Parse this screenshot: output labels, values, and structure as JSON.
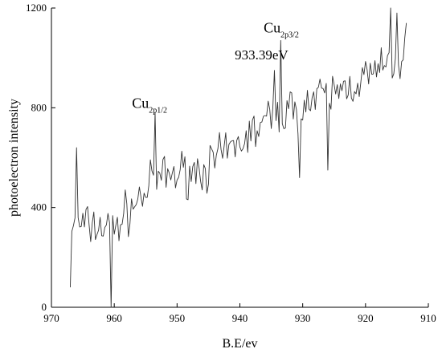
{
  "chart_data": {
    "type": "line",
    "title": "",
    "xlabel": "B.E/ev",
    "ylabel": "photoelectron  intensity",
    "xlim": [
      970,
      910
    ],
    "ylim": [
      0,
      1200
    ],
    "x_reversed": true,
    "xticks": [
      970,
      960,
      950,
      940,
      930,
      920,
      910
    ],
    "yticks": [
      0,
      400,
      800,
      1200
    ],
    "grid": false,
    "legend": "none",
    "line_color": "#333333",
    "series": [
      {
        "x_range": [
          967,
          913.5
        ],
        "step": 0.25,
        "trend": [
          [
            967,
            330
          ],
          [
            960,
            320
          ],
          [
            953,
            520
          ],
          [
            945,
            560
          ],
          [
            935,
            760
          ],
          [
            925,
            860
          ],
          [
            913.5,
            1000
          ]
        ],
        "noise_amplitude": 130,
        "seed": 7,
        "spikes": [
          [
            967,
            80
          ],
          [
            960.5,
            0
          ],
          [
            966,
            640
          ],
          [
            953.6,
            780
          ],
          [
            934.5,
            950
          ],
          [
            933.4,
            1070
          ],
          [
            930.5,
            520
          ],
          [
            926,
            550
          ],
          [
            916,
            1200
          ],
          [
            915,
            1180
          ],
          [
            913.5,
            1140
          ]
        ]
      }
    ],
    "annotations": [
      {
        "base": "Cu",
        "sub": "2p1/2",
        "x": 953.6,
        "y": 780
      },
      {
        "base": "Cu",
        "sub": "2p3/2",
        "x": 933.4,
        "y": 1070
      },
      {
        "text": "933.39eV",
        "x": 933.4,
        "y": 1000
      }
    ]
  }
}
